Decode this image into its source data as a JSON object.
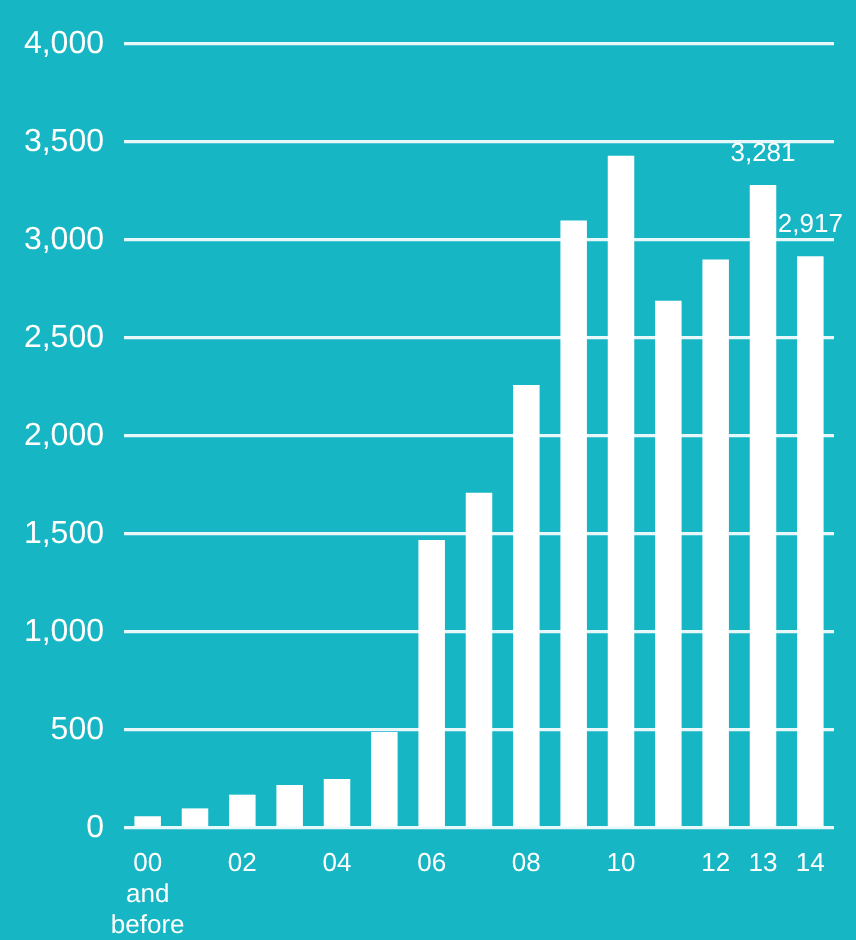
{
  "chart_data": {
    "type": "bar",
    "categories": [
      "00\nand\nbefore",
      null,
      "02",
      null,
      "04",
      null,
      "06",
      null,
      "08",
      null,
      "10",
      null,
      "12",
      "13",
      "14"
    ],
    "values": [
      60,
      100,
      170,
      220,
      250,
      490,
      1470,
      1710,
      2260,
      3100,
      3430,
      2690,
      2900,
      3281,
      2917
    ],
    "value_labels": [
      null,
      null,
      null,
      null,
      null,
      null,
      null,
      null,
      null,
      null,
      null,
      null,
      null,
      "3,281",
      "2,917"
    ],
    "color": "#ffffff",
    "ylim": [
      0,
      4000
    ],
    "yticks": [
      0,
      500,
      {
        "value": 1000,
        "label": "1,000"
      },
      {
        "value": 1500,
        "label": "1,500"
      },
      {
        "value": 2000,
        "label": "2,000"
      },
      {
        "value": 2500,
        "label": "2,500"
      },
      {
        "value": 3000,
        "label": "3,000"
      },
      {
        "value": 3500,
        "label": "3,500"
      },
      {
        "value": 4000,
        "label": "4,000"
      }
    ],
    "grid": "y"
  }
}
